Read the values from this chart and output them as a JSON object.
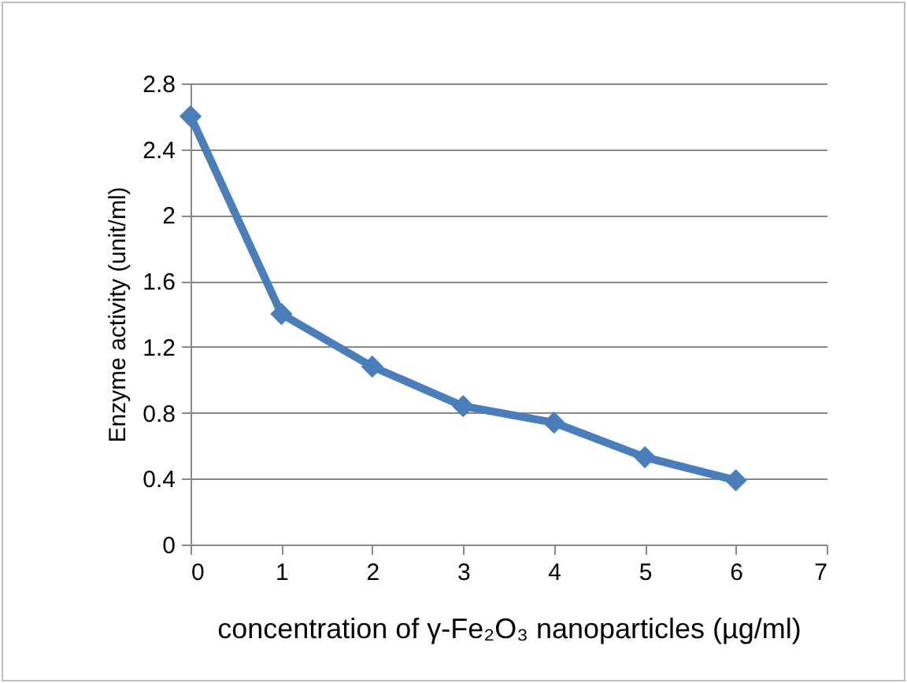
{
  "chart_data": {
    "type": "line",
    "xlabel": "concentration of  γ-Fe₂O₃ nanoparticles  (µg/ml)",
    "ylabel": "Enzyme activity (unit/ml)",
    "x": [
      0,
      1,
      2,
      3,
      4,
      5,
      6
    ],
    "series": [
      {
        "color": "#4a7ebb",
        "values": [
          2.6,
          1.4,
          1.08,
          0.84,
          0.74,
          0.53,
          0.39
        ]
      }
    ],
    "xlim": [
      0,
      7
    ],
    "xticks": [
      0,
      1,
      2,
      3,
      4,
      5,
      6,
      7
    ],
    "ylim": [
      0,
      2.8
    ],
    "yticks": [
      0,
      0.4,
      0.8,
      1.2,
      1.6,
      2,
      2.4,
      2.8
    ],
    "grid": "y",
    "marker": "diamond",
    "line_style": "solid"
  }
}
